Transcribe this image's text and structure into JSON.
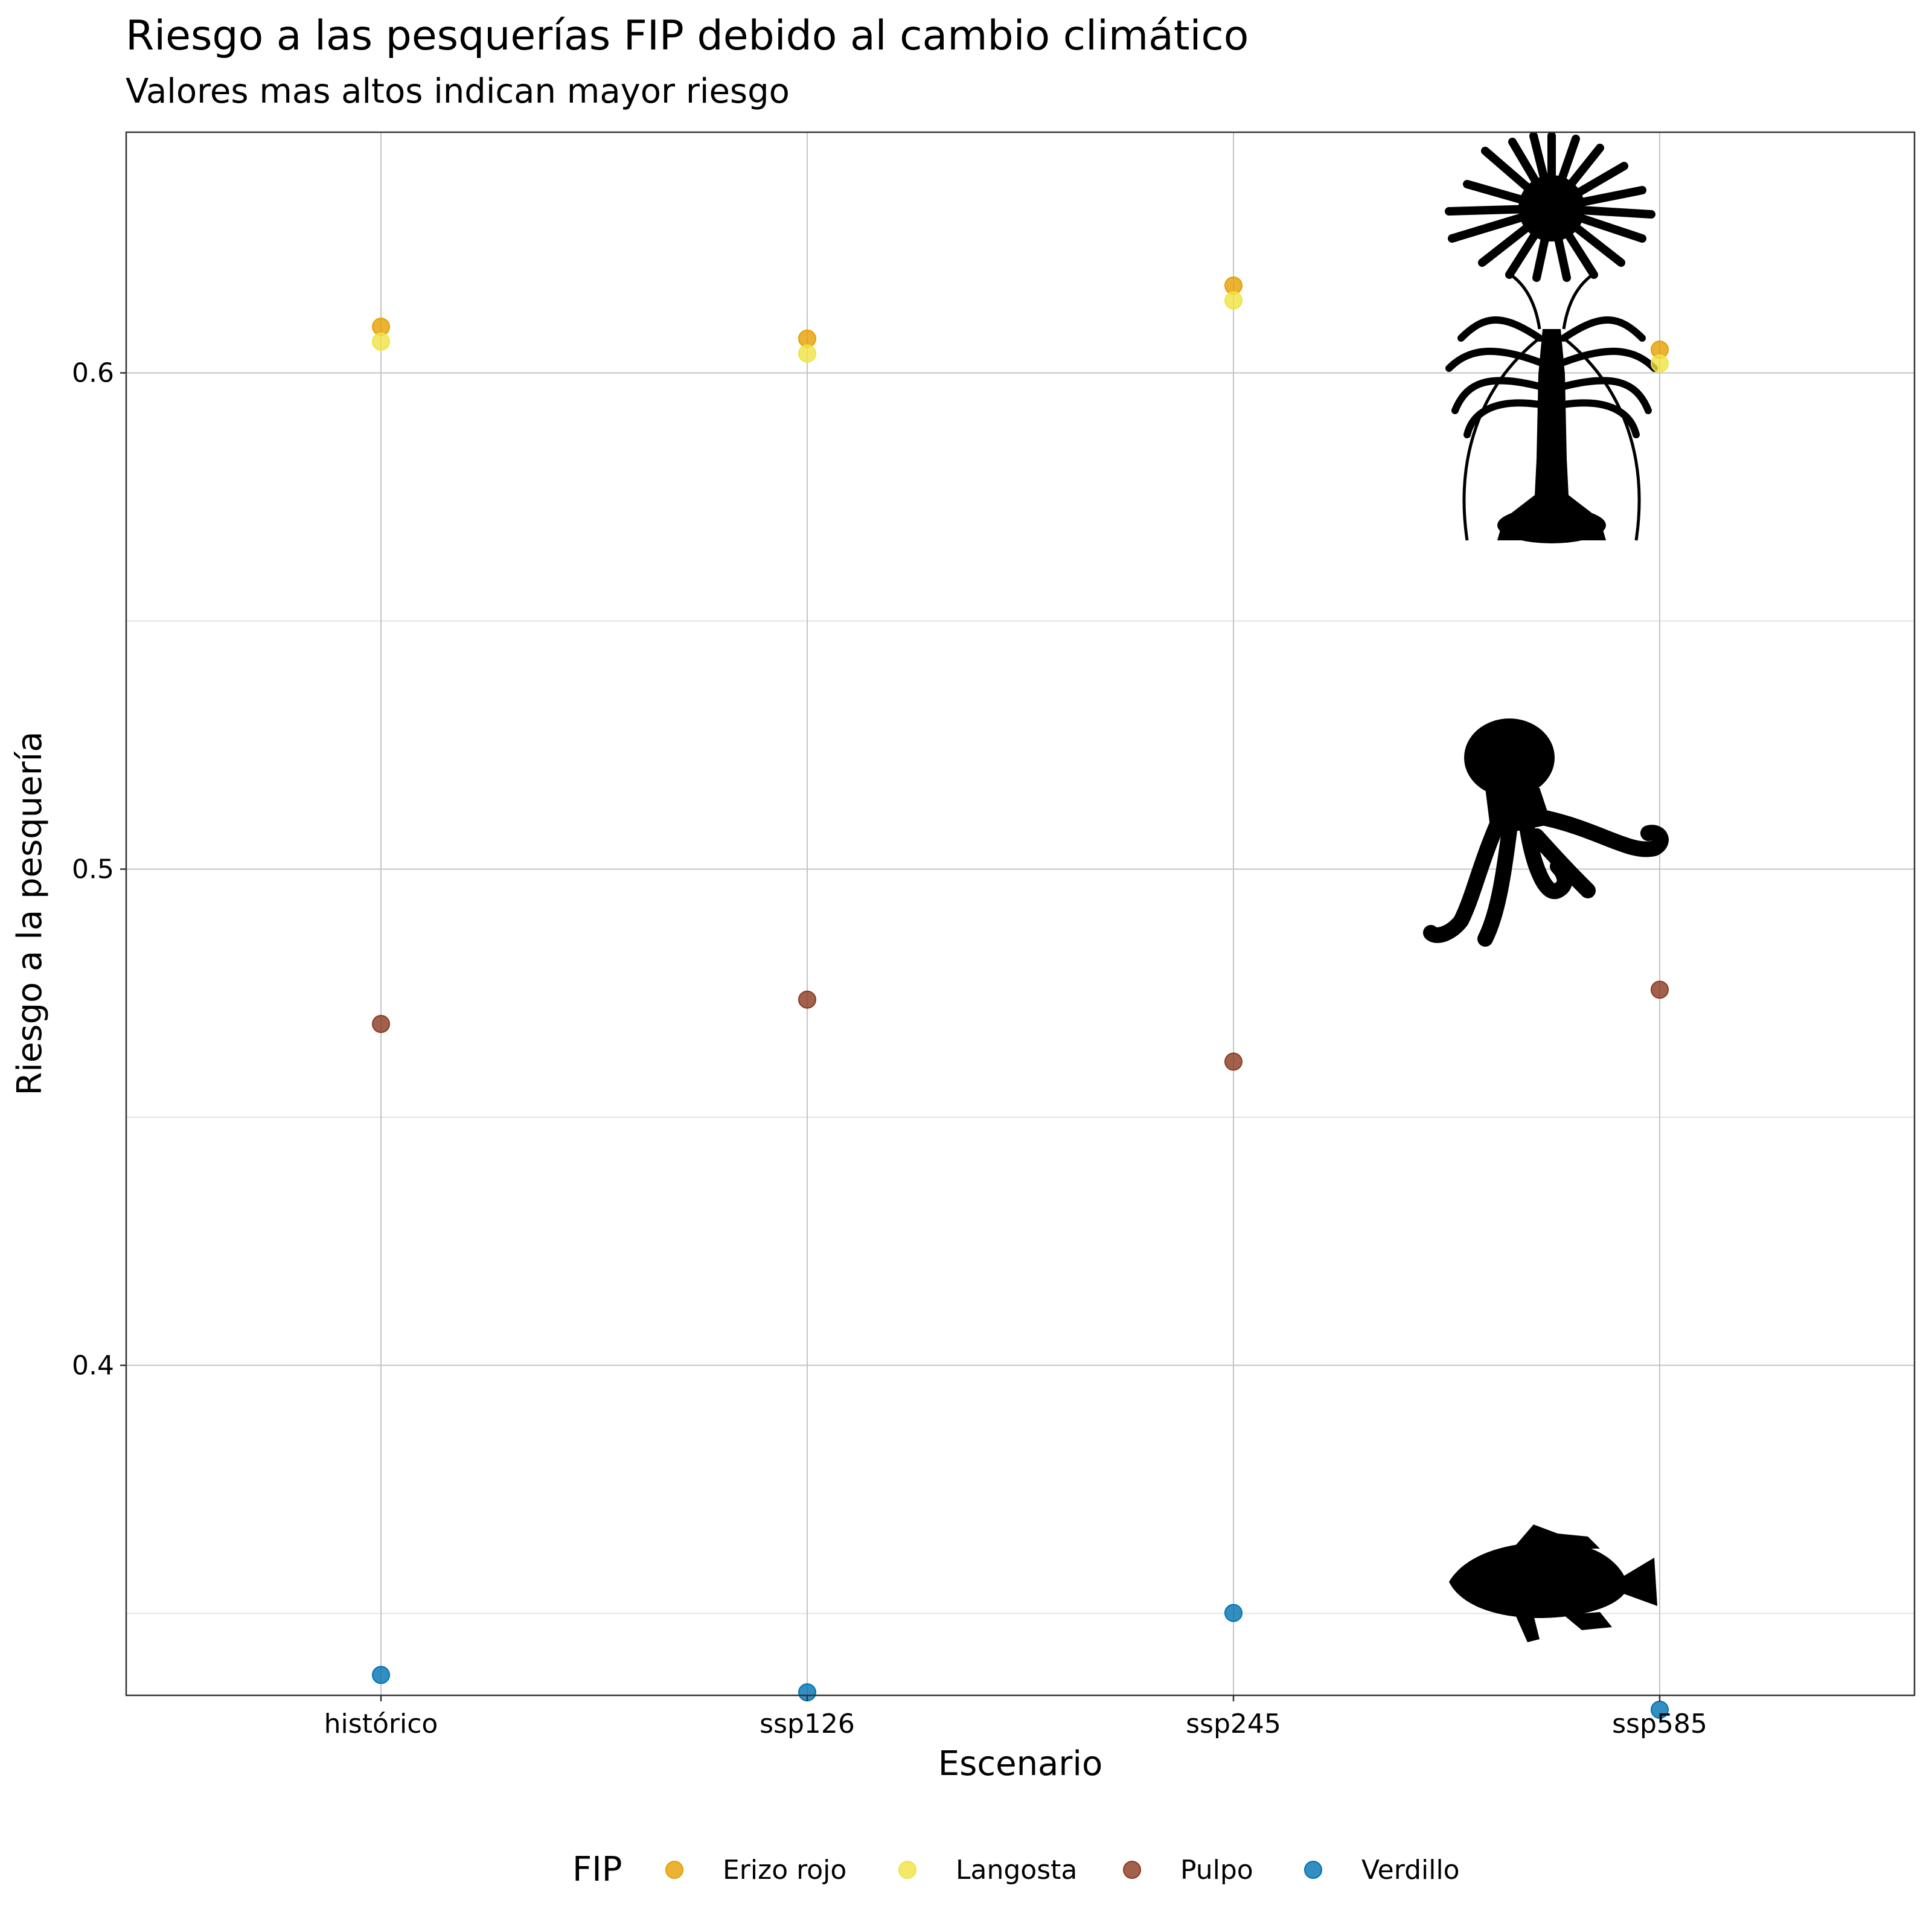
{
  "chart_data": {
    "type": "scatter",
    "title": "Riesgo a las pesquerías FIP debido al cambio climático",
    "subtitle": "Valores mas altos indican mayor riesgo",
    "xlabel": "Escenario",
    "ylabel": "Riesgo a la pesquería",
    "categories": [
      "histórico",
      "ssp126",
      "ssp245",
      "ssp585"
    ],
    "ylim": [
      0.3335,
      0.6485
    ],
    "yticks": [
      0.4,
      0.5,
      0.6
    ],
    "ytick_labels": [
      "0.4",
      "0.5",
      "0.6"
    ],
    "grid": true,
    "legend_title": "FIP",
    "legend_position": "bottom",
    "series": [
      {
        "name": "Erizo rojo",
        "color": "#E69F00",
        "values": [
          0.6093,
          0.6069,
          0.6176,
          0.6047
        ]
      },
      {
        "name": "Langosta",
        "color": "#F0E442",
        "values": [
          0.6063,
          0.6039,
          0.6146,
          0.6019
        ]
      },
      {
        "name": "Pulpo",
        "color": "#8B3A1F",
        "values": [
          0.4688,
          0.4737,
          0.4612,
          0.4757
        ]
      },
      {
        "name": "Verdillo",
        "color": "#0072B2",
        "values": [
          0.3376,
          0.3341,
          0.3501,
          0.3306
        ]
      }
    ],
    "silhouettes": [
      "sea-urchin-icon",
      "lobster-icon",
      "octopus-icon",
      "fish-icon"
    ]
  }
}
